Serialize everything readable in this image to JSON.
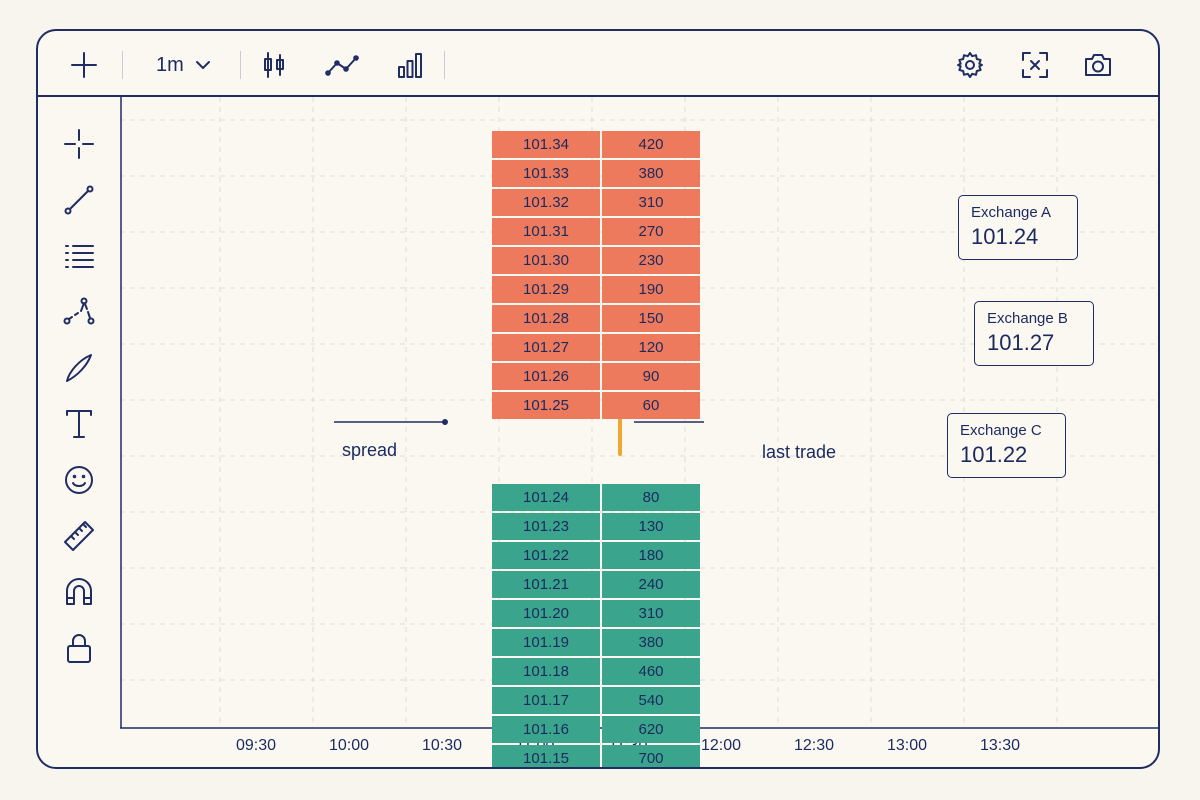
{
  "toolbar": {
    "interval": "1m",
    "icons": [
      "plus-icon",
      "chevron-down-icon",
      "candlestick-icon",
      "line-chart-icon",
      "bar-chart-icon",
      "gear-icon",
      "fullscreen-icon",
      "camera-icon"
    ]
  },
  "sidebar": {
    "tools": [
      "crosshair-icon",
      "trend-line-icon",
      "list-icon",
      "path-icon",
      "brush-icon",
      "text-icon",
      "emoji-icon",
      "ruler-icon",
      "magnet-icon",
      "lock-icon"
    ]
  },
  "chart": {
    "time_ticks": [
      "09:30",
      "10:00",
      "10:30",
      "11:00",
      "11:30",
      "12:00",
      "12:30",
      "13:00",
      "13:30"
    ]
  },
  "orderbook": {
    "asks": [
      {
        "price": "101.34",
        "size": "420"
      },
      {
        "price": "101.33",
        "size": "380"
      },
      {
        "price": "101.32",
        "size": "310"
      },
      {
        "price": "101.31",
        "size": "270"
      },
      {
        "price": "101.30",
        "size": "230"
      },
      {
        "price": "101.29",
        "size": "190"
      },
      {
        "price": "101.28",
        "size": "150"
      },
      {
        "price": "101.27",
        "size": "120"
      },
      {
        "price": "101.26",
        "size": "90"
      },
      {
        "price": "101.25",
        "size": "60"
      }
    ],
    "bids": [
      {
        "price": "101.24",
        "size": "80"
      },
      {
        "price": "101.23",
        "size": "130"
      },
      {
        "price": "101.22",
        "size": "180"
      },
      {
        "price": "101.21",
        "size": "240"
      },
      {
        "price": "101.20",
        "size": "310"
      },
      {
        "price": "101.19",
        "size": "380"
      },
      {
        "price": "101.18",
        "size": "460"
      },
      {
        "price": "101.17",
        "size": "540"
      },
      {
        "price": "101.16",
        "size": "620"
      },
      {
        "price": "101.15",
        "size": "700"
      }
    ],
    "colors": {
      "ask": "#ee7a5e",
      "bid": "#3aa58c",
      "last_trade": "#f0a732"
    }
  },
  "annotations": {
    "spread": "spread",
    "last_trade": "last trade"
  },
  "exchanges": [
    {
      "name": "Exchange A",
      "price": "101.24"
    },
    {
      "name": "Exchange B",
      "price": "101.27"
    },
    {
      "name": "Exchange C",
      "price": "101.22"
    }
  ]
}
